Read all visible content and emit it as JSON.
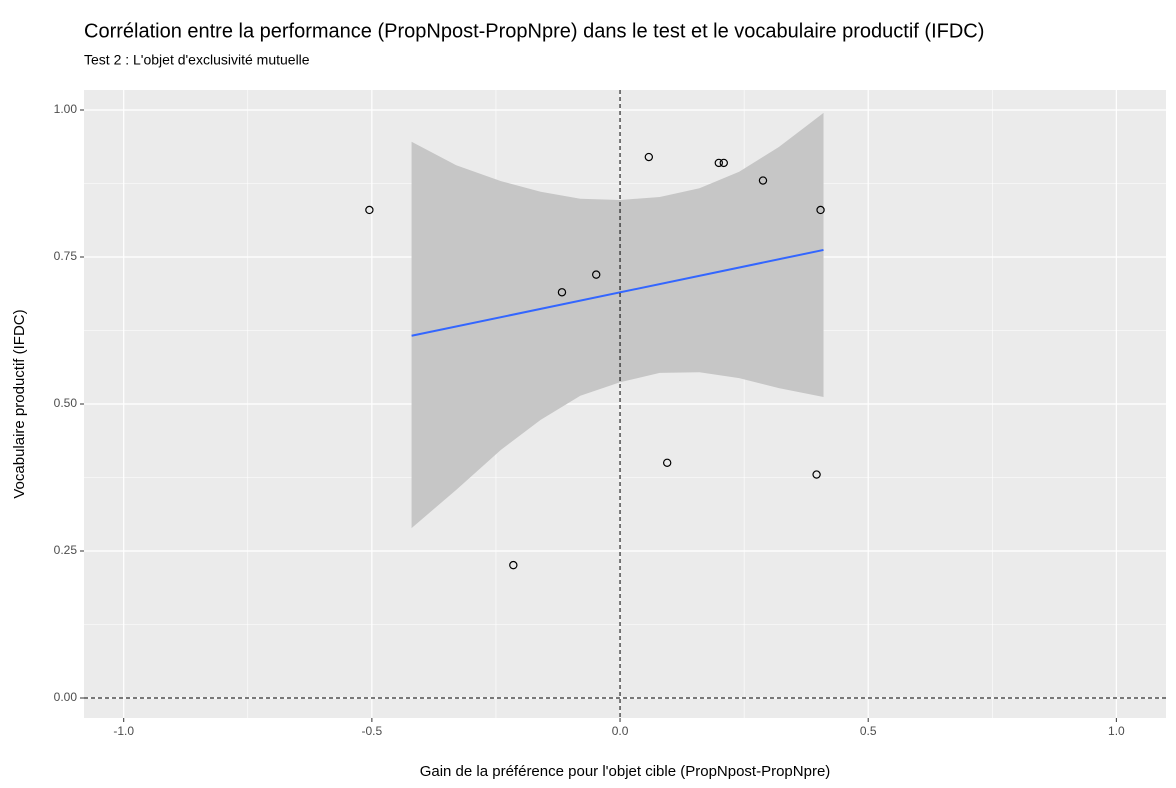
{
  "chart_data": {
    "type": "scatter",
    "title": "Corrélation entre la performance (PropNpost-PropNpre) dans le test et le vocabulaire productif (IFDC)",
    "subtitle": "Test 2 : L'objet d'exclusivité mutuelle",
    "x_label": "Gain de la préférence pour l'objet cible (PropNpost-PropNpre)",
    "y_label": "Vocabulaire productif (IFDC)",
    "xlim": [
      -1.08,
      1.1
    ],
    "ylim": [
      -0.034,
      1.034
    ],
    "xticks": [
      {
        "value": -1,
        "label": "-1.0"
      },
      {
        "value": -0.5,
        "label": "-0.5"
      },
      {
        "value": 0,
        "label": "0.0"
      },
      {
        "value": 0.5,
        "label": "0.5"
      },
      {
        "value": 1,
        "label": "1.0"
      }
    ],
    "yticks": [
      {
        "value": 0,
        "label": "0.00"
      },
      {
        "value": 0.25,
        "label": "0.25"
      },
      {
        "value": 0.5,
        "label": "0.50"
      },
      {
        "value": 0.75,
        "label": "0.75"
      },
      {
        "value": 1,
        "label": "1.00"
      }
    ],
    "grid": true,
    "vline": 0,
    "hline": 0,
    "series": [
      {
        "color": "#000000",
        "x": [
          -0.505,
          -0.117,
          -0.048,
          -0.215,
          0.058,
          0.095,
          0.199,
          0.209,
          0.288,
          0.396,
          0.404
        ],
        "values": [
          0.83,
          0.69,
          0.72,
          0.226,
          0.92,
          0.4,
          0.91,
          0.91,
          0.88,
          0.38,
          0.83
        ]
      }
    ],
    "fit": {
      "color": "#3366ff",
      "x": [
        -0.42,
        0.41
      ],
      "values": [
        0.616,
        0.762
      ]
    },
    "ribbon": {
      "color": "#c6c6c6",
      "x": [
        -0.42,
        -0.33,
        -0.24,
        -0.16,
        -0.08,
        0,
        0.08,
        0.16,
        0.24,
        0.32,
        0.41
      ],
      "upper": [
        0.946,
        0.906,
        0.879,
        0.861,
        0.849,
        0.847,
        0.852,
        0.867,
        0.895,
        0.937,
        0.995
      ],
      "lower": [
        0.289,
        0.354,
        0.422,
        0.473,
        0.514,
        0.537,
        0.553,
        0.554,
        0.544,
        0.527,
        0.512
      ]
    }
  }
}
